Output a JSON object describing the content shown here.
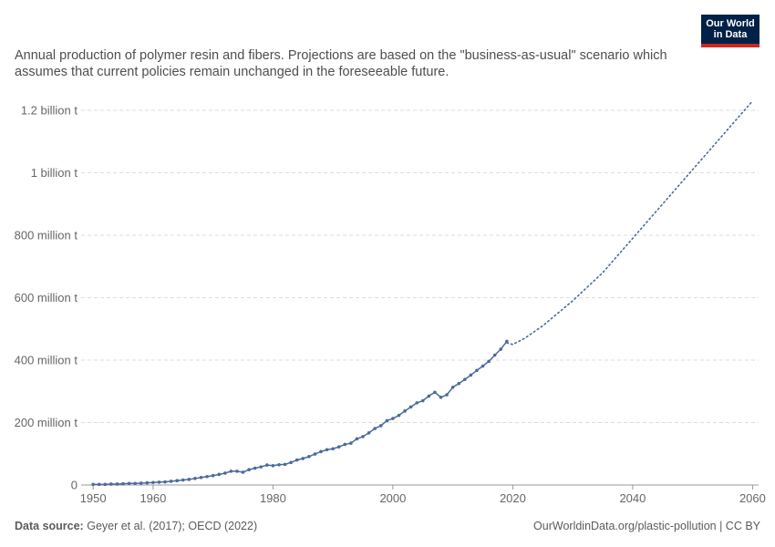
{
  "header": {
    "subtitle": "Annual production of polymer resin and fibers. Projections are based on the \"business-as-usual\" scenario which assumes that current policies remain unchanged in the foreseeable future.",
    "logo_line1": "Our World",
    "logo_line2": "in Data"
  },
  "footer": {
    "source_label": "Data source:",
    "source_text": "Geyer et al. (2017); OECD (2022)",
    "url_text": "OurWorldinData.org/plastic-pollution | CC BY"
  },
  "colors": {
    "series": "#4c6a9c",
    "grid": "#dddddd",
    "axis": "#999999",
    "logo_bg": "#002147",
    "logo_accent": "#ce261e"
  },
  "chart_data": {
    "type": "line",
    "x_ticks": [
      1950,
      1960,
      1980,
      2000,
      2020,
      2040,
      2060
    ],
    "y_ticks": [
      {
        "value": 0,
        "label": "0"
      },
      {
        "value": 200000000,
        "label": "200 million t"
      },
      {
        "value": 400000000,
        "label": "400 million t"
      },
      {
        "value": 600000000,
        "label": "600 million t"
      },
      {
        "value": 800000000,
        "label": "800 million t"
      },
      {
        "value": 1000000000,
        "label": "1 billion t"
      },
      {
        "value": 1200000000,
        "label": "1.2 billion t"
      }
    ],
    "xlim": [
      1948,
      2061
    ],
    "ylim": [
      0,
      1200000000
    ],
    "grid": true,
    "series": [
      {
        "style": "solid-markers",
        "x": [
          1950,
          1951,
          1952,
          1953,
          1954,
          1955,
          1956,
          1957,
          1958,
          1959,
          1960,
          1961,
          1962,
          1963,
          1964,
          1965,
          1966,
          1967,
          1968,
          1969,
          1970,
          1971,
          1972,
          1973,
          1974,
          1975,
          1976,
          1977,
          1978,
          1979,
          1980,
          1981,
          1982,
          1983,
          1984,
          1985,
          1986,
          1987,
          1988,
          1989,
          1990,
          1991,
          1992,
          1993,
          1994,
          1995,
          1996,
          1997,
          1998,
          1999,
          2000,
          2001,
          2002,
          2003,
          2004,
          2005,
          2006,
          2007,
          2008,
          2009,
          2010,
          2011,
          2012,
          2013,
          2014,
          2015,
          2016,
          2017,
          2018,
          2019
        ],
        "y": [
          2000000,
          2000000,
          2000000,
          3000000,
          3000000,
          4000000,
          5000000,
          5000000,
          6000000,
          7000000,
          8000000,
          9000000,
          10000000,
          12000000,
          14000000,
          16000000,
          18000000,
          21000000,
          24000000,
          27000000,
          30000000,
          34000000,
          38000000,
          44000000,
          44000000,
          41000000,
          49000000,
          54000000,
          58000000,
          64000000,
          62000000,
          65000000,
          66000000,
          72000000,
          80000000,
          85000000,
          91000000,
          99000000,
          107000000,
          113000000,
          116000000,
          122000000,
          130000000,
          134000000,
          148000000,
          155000000,
          167000000,
          181000000,
          190000000,
          206000000,
          213000000,
          223000000,
          237000000,
          250000000,
          263000000,
          270000000,
          285000000,
          297000000,
          281000000,
          289000000,
          313000000,
          325000000,
          338000000,
          352000000,
          367000000,
          381000000,
          396000000,
          416000000,
          435000000,
          460000000
        ]
      },
      {
        "style": "dotted",
        "x": [
          2019,
          2020,
          2022,
          2025,
          2030,
          2035,
          2040,
          2045,
          2050,
          2055,
          2060
        ],
        "y": [
          455000000,
          450000000,
          470000000,
          510000000,
          590000000,
          680000000,
          790000000,
          900000000,
          1010000000,
          1120000000,
          1230000000
        ]
      }
    ]
  }
}
